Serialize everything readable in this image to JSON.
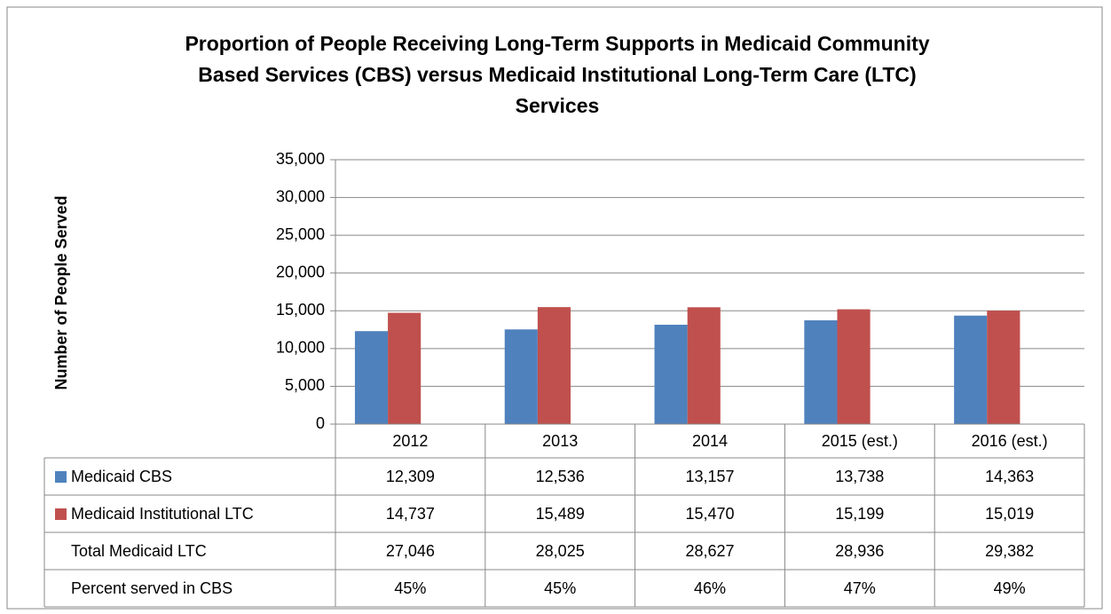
{
  "chart_data": {
    "type": "bar",
    "title": "Proportion of People Receiving Long-Term Supports in Medicaid Community Based Services (CBS) versus Medicaid Institutional Long-Term Care (LTC)  Services",
    "ylabel": "Number of People Served",
    "categories": [
      "2012",
      "2013",
      "2014",
      "2015 (est.)",
      "2016 (est.)"
    ],
    "series": [
      {
        "name": "Medicaid CBS",
        "color": "#4f81bd",
        "values": [
          12309,
          12536,
          13157,
          13738,
          14363
        ],
        "value_labels": [
          "12,309",
          "12,536",
          "13,157",
          "13,738",
          "14,363"
        ]
      },
      {
        "name": "Medicaid Institutional LTC",
        "color": "#c0504d",
        "values": [
          14737,
          15489,
          15470,
          15199,
          15019
        ],
        "value_labels": [
          "14,737",
          "15,489",
          "15,470",
          "15,199",
          "15,019"
        ]
      }
    ],
    "table_rows": [
      {
        "name": "Total Medicaid LTC",
        "values": [
          27046,
          28025,
          28627,
          28936,
          29382
        ],
        "value_labels": [
          "27,046",
          "28,025",
          "28,627",
          "28,936",
          "29,382"
        ]
      },
      {
        "name": "Percent served in CBS",
        "values": [
          45,
          45,
          46,
          47,
          49
        ],
        "value_labels": [
          "45%",
          "45%",
          "46%",
          "47%",
          "49%"
        ]
      }
    ],
    "ylim": [
      0,
      35000
    ],
    "yticks": [
      0,
      {
        "value": 5000,
        "label": "5,000"
      },
      {
        "value": 10000,
        "label": "10,000"
      },
      {
        "value": 15000,
        "label": "15,000"
      },
      {
        "value": 20000,
        "label": "20,000"
      },
      {
        "value": 25000,
        "label": "25,000"
      },
      {
        "value": 30000,
        "label": "30,000"
      },
      {
        "value": 35000,
        "label": "35,000"
      }
    ],
    "grid": true
  }
}
